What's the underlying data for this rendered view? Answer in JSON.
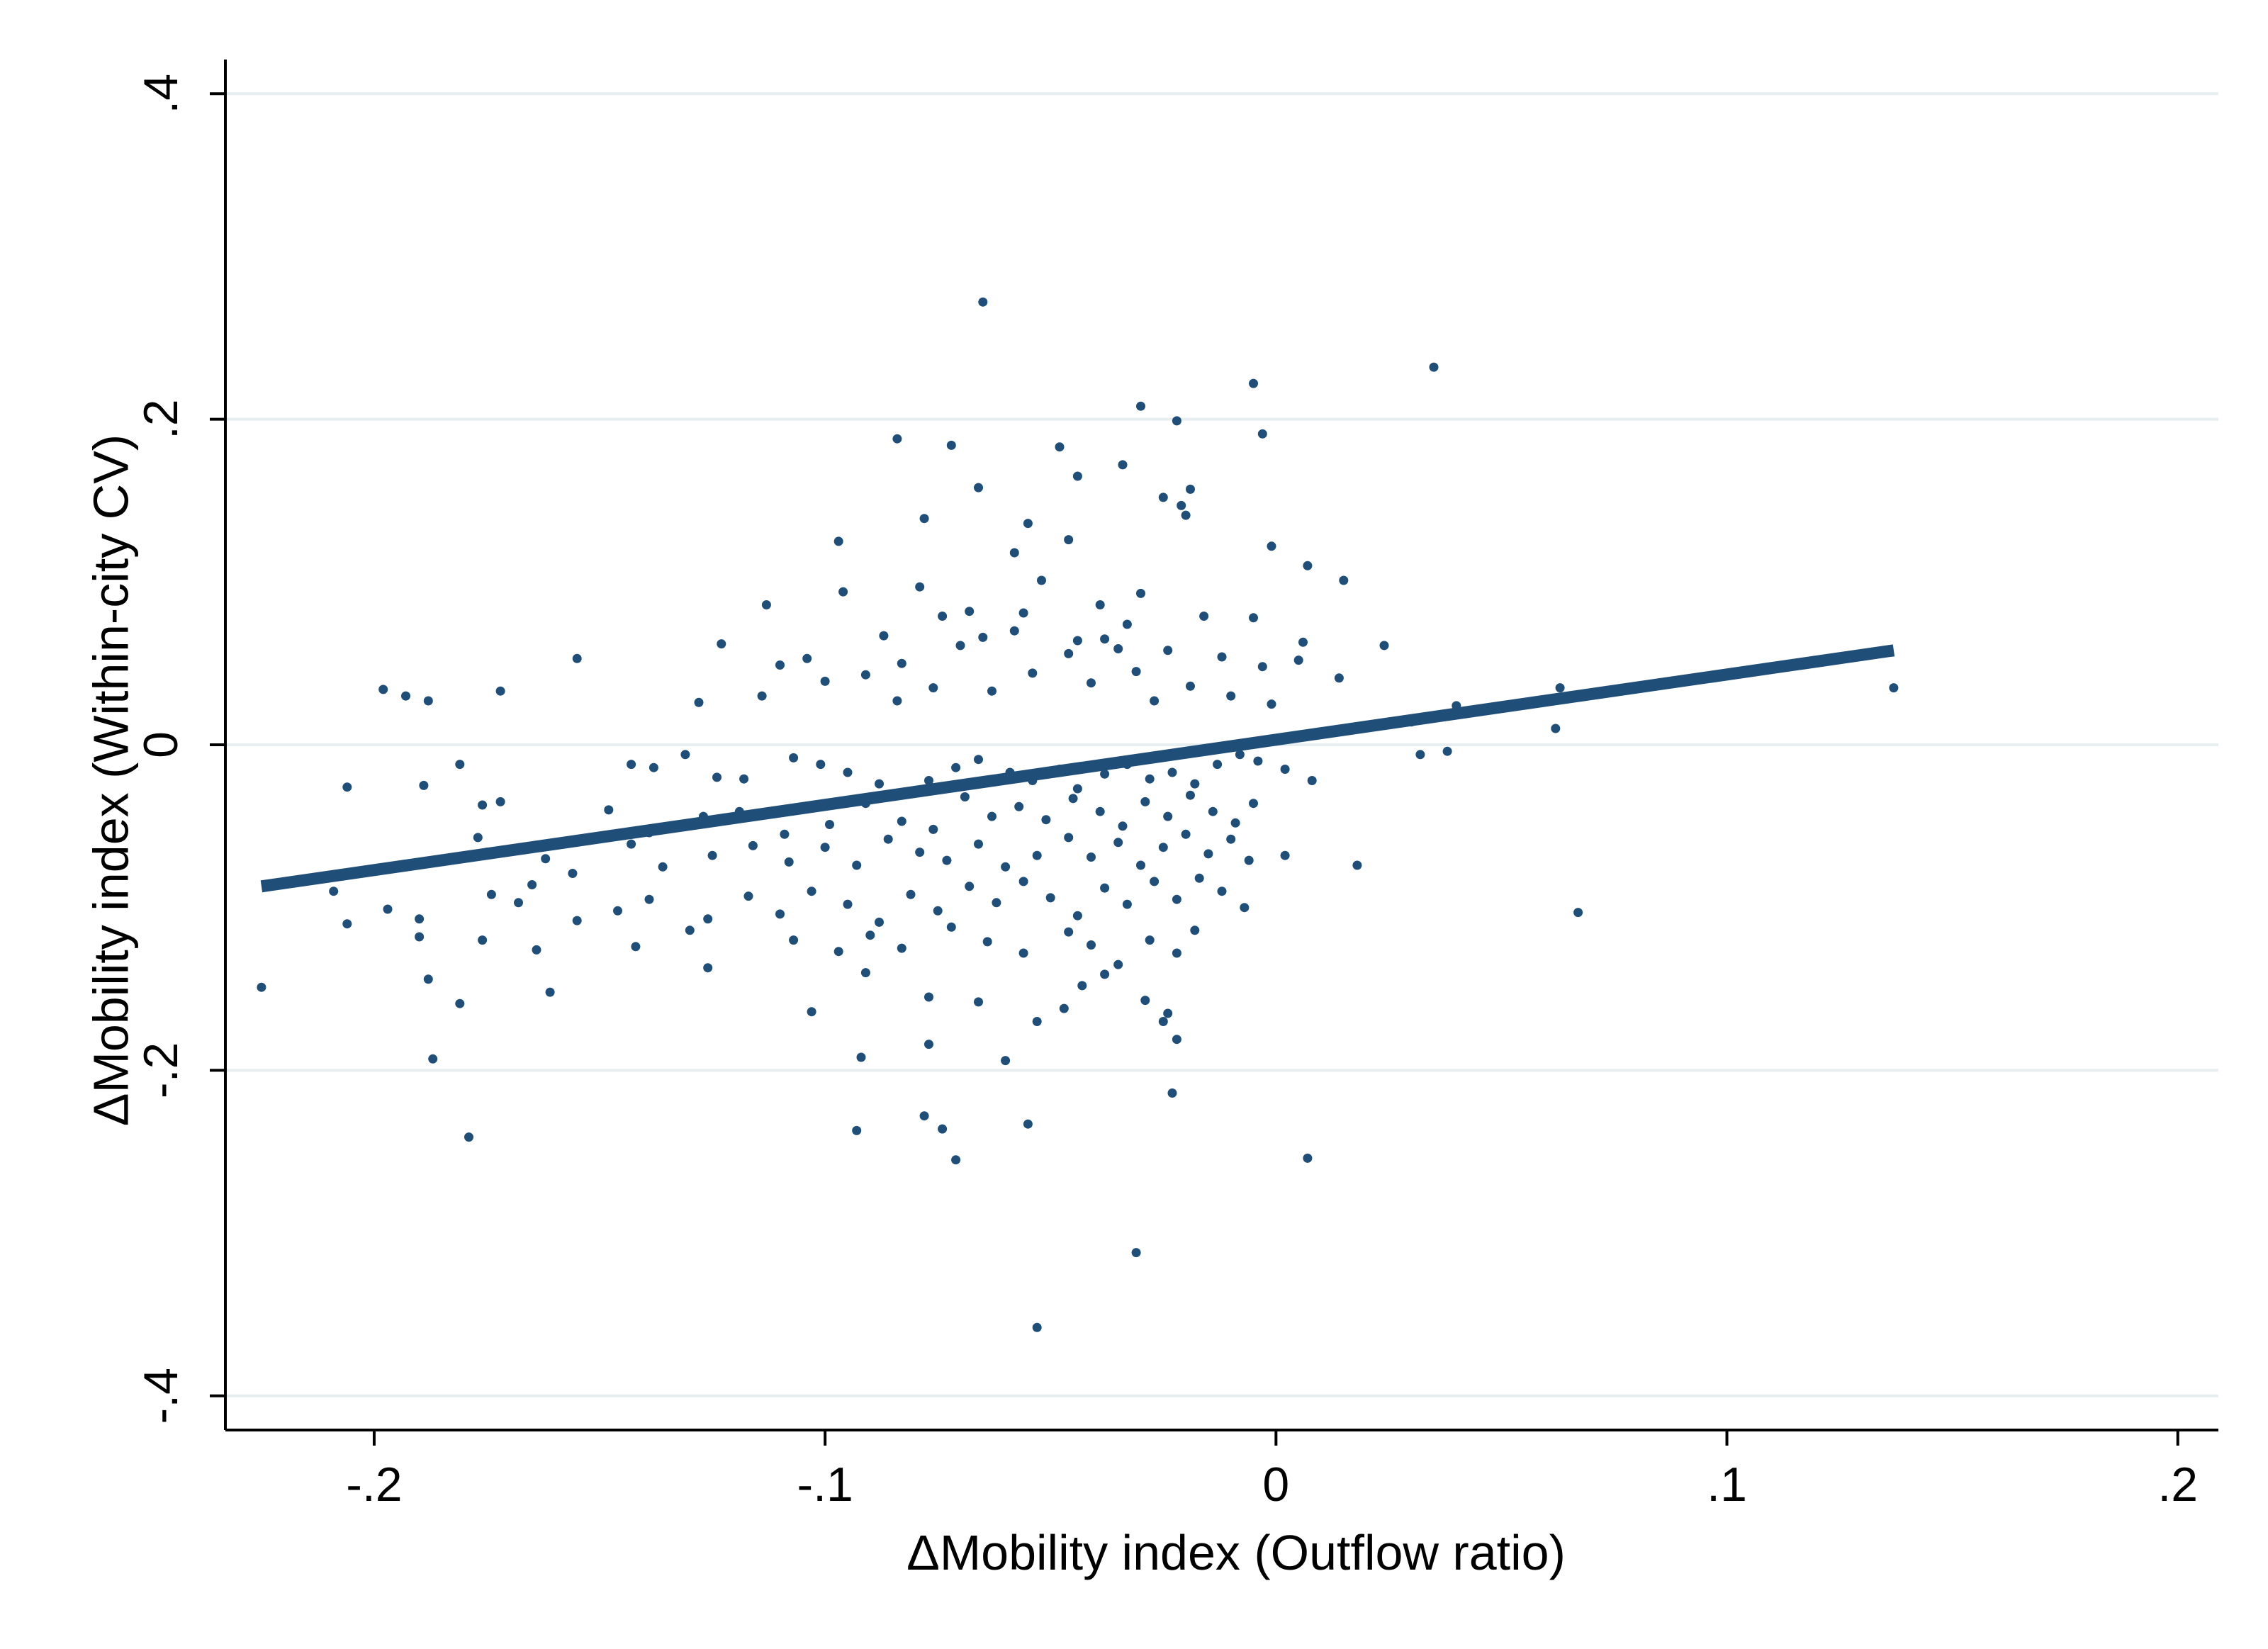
{
  "chart_data": {
    "type": "scatter",
    "xlabel": "ΔMobility index (Outflow ratio)",
    "ylabel": "ΔMobility index (Within-city CV)",
    "xlim": [
      -0.233,
      0.209
    ],
    "ylim": [
      -0.421,
      0.421
    ],
    "x_ticks": [
      {
        "value": -0.2,
        "label": "-.2"
      },
      {
        "value": -0.1,
        "label": "-.1"
      },
      {
        "value": 0,
        "label": "0"
      },
      {
        "value": 0.1,
        "label": ".1"
      },
      {
        "value": 0.2,
        "label": ".2"
      }
    ],
    "y_ticks": [
      {
        "value": -0.4,
        "label": "-.4"
      },
      {
        "value": -0.2,
        "label": "-.2"
      },
      {
        "value": 0,
        "label": "0"
      },
      {
        "value": 0.2,
        "label": ".2"
      },
      {
        "value": 0.4,
        "label": ".4"
      }
    ],
    "grid": "horizontal",
    "colors": {
      "points": "#1f4e79",
      "fit_line": "#1f4e79",
      "grid": "#e6eef0",
      "axis": "#000000"
    },
    "fit_line": {
      "x": [
        -0.225,
        0.137
      ],
      "y": [
        -0.087,
        0.058
      ]
    },
    "series": [
      {
        "values": [
          [
            -0.065,
            0.272
          ],
          [
            0.035,
            0.232
          ],
          [
            -0.005,
            0.222
          ],
          [
            -0.03,
            0.208
          ],
          [
            -0.022,
            0.199
          ],
          [
            -0.084,
            0.188
          ],
          [
            -0.072,
            0.184
          ],
          [
            -0.003,
            0.191
          ],
          [
            -0.048,
            0.183
          ],
          [
            -0.034,
            0.172
          ],
          [
            -0.044,
            0.165
          ],
          [
            -0.066,
            0.158
          ],
          [
            -0.019,
            0.157
          ],
          [
            -0.025,
            0.152
          ],
          [
            -0.021,
            0.147
          ],
          [
            -0.02,
            0.141
          ],
          [
            -0.078,
            0.139
          ],
          [
            -0.046,
            0.126
          ],
          [
            -0.055,
            0.136
          ],
          [
            -0.097,
            0.125
          ],
          [
            -0.001,
            0.122
          ],
          [
            0.007,
            0.11
          ],
          [
            0.015,
            0.101
          ],
          [
            -0.058,
            0.118
          ],
          [
            -0.052,
            0.101
          ],
          [
            -0.096,
            0.094
          ],
          [
            -0.079,
            0.097
          ],
          [
            -0.03,
            0.093
          ],
          [
            -0.068,
            0.082
          ],
          [
            -0.039,
            0.086
          ],
          [
            -0.113,
            0.086
          ],
          [
            -0.087,
            0.067
          ],
          [
            -0.074,
            0.079
          ],
          [
            -0.058,
            0.07
          ],
          [
            -0.056,
            0.081
          ],
          [
            -0.016,
            0.079
          ],
          [
            -0.033,
            0.074
          ],
          [
            -0.005,
            0.078
          ],
          [
            -0.07,
            0.061
          ],
          [
            -0.046,
            0.056
          ],
          [
            -0.083,
            0.05
          ],
          [
            -0.091,
            0.043
          ],
          [
            -0.11,
            0.049
          ],
          [
            -0.104,
            0.053
          ],
          [
            -0.123,
            0.062
          ],
          [
            -0.065,
            0.066
          ],
          [
            -0.044,
            0.064
          ],
          [
            -0.038,
            0.065
          ],
          [
            -0.035,
            0.059
          ],
          [
            0.006,
            0.063
          ],
          [
            0.024,
            0.061
          ],
          [
            0.014,
            0.041
          ],
          [
            -0.024,
            0.058
          ],
          [
            -0.012,
            0.054
          ],
          [
            -0.003,
            0.048
          ],
          [
            0.005,
            0.052
          ],
          [
            -0.198,
            0.034
          ],
          [
            -0.172,
            0.033
          ],
          [
            -0.155,
            0.053
          ],
          [
            -0.188,
            0.027
          ],
          [
            -0.193,
            0.03
          ],
          [
            -0.128,
            0.026
          ],
          [
            -0.114,
            0.03
          ],
          [
            -0.1,
            0.039
          ],
          [
            -0.084,
            0.027
          ],
          [
            -0.076,
            0.035
          ],
          [
            -0.063,
            0.033
          ],
          [
            -0.054,
            0.044
          ],
          [
            -0.041,
            0.038
          ],
          [
            -0.031,
            0.045
          ],
          [
            -0.027,
            0.027
          ],
          [
            -0.019,
            0.036
          ],
          [
            -0.01,
            0.03
          ],
          [
            -0.001,
            0.025
          ],
          [
            0.063,
            0.035
          ],
          [
            0.137,
            0.035
          ],
          [
            0.04,
            0.024
          ],
          [
            -0.206,
            -0.026
          ],
          [
            -0.181,
            -0.012
          ],
          [
            -0.189,
            -0.025
          ],
          [
            -0.176,
            -0.037
          ],
          [
            -0.172,
            -0.035
          ],
          [
            -0.143,
            -0.012
          ],
          [
            -0.138,
            -0.014
          ],
          [
            -0.131,
            -0.006
          ],
          [
            -0.124,
            -0.02
          ],
          [
            -0.118,
            -0.021
          ],
          [
            -0.107,
            -0.008
          ],
          [
            -0.101,
            -0.012
          ],
          [
            -0.095,
            -0.017
          ],
          [
            -0.088,
            -0.024
          ],
          [
            -0.082,
            -0.03
          ],
          [
            -0.077,
            -0.022
          ],
          [
            -0.071,
            -0.014
          ],
          [
            -0.066,
            -0.009
          ],
          [
            -0.059,
            -0.017
          ],
          [
            -0.054,
            -0.022
          ],
          [
            -0.048,
            -0.015
          ],
          [
            -0.044,
            -0.027
          ],
          [
            -0.038,
            -0.018
          ],
          [
            -0.033,
            -0.012
          ],
          [
            -0.028,
            -0.021
          ],
          [
            -0.023,
            -0.017
          ],
          [
            -0.018,
            -0.024
          ],
          [
            -0.013,
            -0.012
          ],
          [
            -0.008,
            -0.006
          ],
          [
            -0.004,
            -0.01
          ],
          [
            0.002,
            -0.015
          ],
          [
            0.008,
            -0.022
          ],
          [
            0.018,
            0.011
          ],
          [
            0.03,
            0.014
          ],
          [
            0.032,
            -0.006
          ],
          [
            0.038,
            -0.004
          ],
          [
            0.062,
            0.01
          ],
          [
            -0.148,
            -0.04
          ],
          [
            -0.139,
            -0.054
          ],
          [
            -0.127,
            -0.044
          ],
          [
            -0.119,
            -0.041
          ],
          [
            -0.109,
            -0.055
          ],
          [
            -0.099,
            -0.049
          ],
          [
            -0.091,
            -0.036
          ],
          [
            -0.083,
            -0.047
          ],
          [
            -0.076,
            -0.052
          ],
          [
            -0.069,
            -0.032
          ],
          [
            -0.063,
            -0.044
          ],
          [
            -0.057,
            -0.038
          ],
          [
            -0.051,
            -0.046
          ],
          [
            -0.045,
            -0.033
          ],
          [
            -0.039,
            -0.041
          ],
          [
            -0.034,
            -0.05
          ],
          [
            -0.029,
            -0.035
          ],
          [
            -0.024,
            -0.044
          ],
          [
            -0.019,
            -0.031
          ],
          [
            -0.014,
            -0.041
          ],
          [
            -0.009,
            -0.048
          ],
          [
            -0.005,
            -0.036
          ],
          [
            -0.175,
            -0.066
          ],
          [
            -0.168,
            -0.064
          ],
          [
            -0.162,
            -0.07
          ],
          [
            -0.177,
            -0.057
          ],
          [
            -0.165,
            -0.086
          ],
          [
            -0.156,
            -0.079
          ],
          [
            -0.143,
            -0.061
          ],
          [
            -0.136,
            -0.075
          ],
          [
            -0.125,
            -0.068
          ],
          [
            -0.116,
            -0.062
          ],
          [
            -0.108,
            -0.072
          ],
          [
            -0.1,
            -0.063
          ],
          [
            -0.093,
            -0.074
          ],
          [
            -0.086,
            -0.058
          ],
          [
            -0.079,
            -0.066
          ],
          [
            -0.073,
            -0.071
          ],
          [
            -0.066,
            -0.061
          ],
          [
            -0.06,
            -0.075
          ],
          [
            -0.053,
            -0.068
          ],
          [
            -0.046,
            -0.057
          ],
          [
            -0.041,
            -0.069
          ],
          [
            -0.035,
            -0.06
          ],
          [
            -0.03,
            -0.074
          ],
          [
            -0.025,
            -0.063
          ],
          [
            -0.02,
            -0.055
          ],
          [
            -0.015,
            -0.067
          ],
          [
            -0.01,
            -0.058
          ],
          [
            -0.006,
            -0.071
          ],
          [
            0.018,
            -0.074
          ],
          [
            0.002,
            -0.068
          ],
          [
            -0.209,
            -0.09
          ],
          [
            -0.197,
            -0.101
          ],
          [
            -0.19,
            -0.107
          ],
          [
            -0.174,
            -0.092
          ],
          [
            -0.168,
            -0.097
          ],
          [
            -0.155,
            -0.108
          ],
          [
            -0.146,
            -0.102
          ],
          [
            -0.139,
            -0.095
          ],
          [
            -0.126,
            -0.107
          ],
          [
            -0.117,
            -0.093
          ],
          [
            -0.11,
            -0.104
          ],
          [
            -0.103,
            -0.09
          ],
          [
            -0.095,
            -0.098
          ],
          [
            -0.088,
            -0.109
          ],
          [
            -0.081,
            -0.092
          ],
          [
            -0.075,
            -0.102
          ],
          [
            -0.068,
            -0.087
          ],
          [
            -0.062,
            -0.097
          ],
          [
            -0.056,
            -0.084
          ],
          [
            -0.05,
            -0.094
          ],
          [
            -0.044,
            -0.105
          ],
          [
            -0.038,
            -0.088
          ],
          [
            -0.033,
            -0.098
          ],
          [
            -0.027,
            -0.084
          ],
          [
            -0.022,
            -0.095
          ],
          [
            -0.017,
            -0.082
          ],
          [
            -0.012,
            -0.09
          ],
          [
            -0.007,
            -0.1
          ],
          [
            0.067,
            -0.103
          ],
          [
            -0.206,
            -0.11
          ],
          [
            -0.19,
            -0.118
          ],
          [
            -0.176,
            -0.12
          ],
          [
            -0.164,
            -0.126
          ],
          [
            -0.142,
            -0.124
          ],
          [
            -0.13,
            -0.114
          ],
          [
            -0.107,
            -0.12
          ],
          [
            -0.097,
            -0.127
          ],
          [
            -0.09,
            -0.117
          ],
          [
            -0.083,
            -0.125
          ],
          [
            -0.072,
            -0.112
          ],
          [
            -0.064,
            -0.121
          ],
          [
            -0.056,
            -0.128
          ],
          [
            -0.046,
            -0.115
          ],
          [
            -0.041,
            -0.123
          ],
          [
            -0.035,
            -0.135
          ],
          [
            -0.028,
            -0.12
          ],
          [
            -0.022,
            -0.128
          ],
          [
            -0.018,
            -0.114
          ],
          [
            -0.225,
            -0.149
          ],
          [
            -0.188,
            -0.144
          ],
          [
            -0.161,
            -0.152
          ],
          [
            -0.126,
            -0.137
          ],
          [
            -0.103,
            -0.164
          ],
          [
            -0.091,
            -0.14
          ],
          [
            -0.077,
            -0.155
          ],
          [
            -0.066,
            -0.158
          ],
          [
            -0.053,
            -0.17
          ],
          [
            -0.047,
            -0.162
          ],
          [
            -0.043,
            -0.148
          ],
          [
            -0.038,
            -0.141
          ],
          [
            -0.029,
            -0.157
          ],
          [
            -0.024,
            -0.165
          ],
          [
            -0.022,
            -0.181
          ],
          [
            -0.181,
            -0.159
          ],
          [
            -0.187,
            -0.193
          ],
          [
            -0.092,
            -0.192
          ],
          [
            -0.077,
            -0.184
          ],
          [
            -0.06,
            -0.194
          ],
          [
            -0.025,
            -0.17
          ],
          [
            -0.023,
            -0.214
          ],
          [
            -0.179,
            -0.241
          ],
          [
            -0.093,
            -0.237
          ],
          [
            -0.078,
            -0.228
          ],
          [
            -0.074,
            -0.236
          ],
          [
            -0.055,
            -0.233
          ],
          [
            -0.071,
            -0.255
          ],
          [
            0.007,
            -0.254
          ],
          [
            -0.031,
            -0.312
          ],
          [
            -0.053,
            -0.358
          ]
        ]
      }
    ]
  }
}
